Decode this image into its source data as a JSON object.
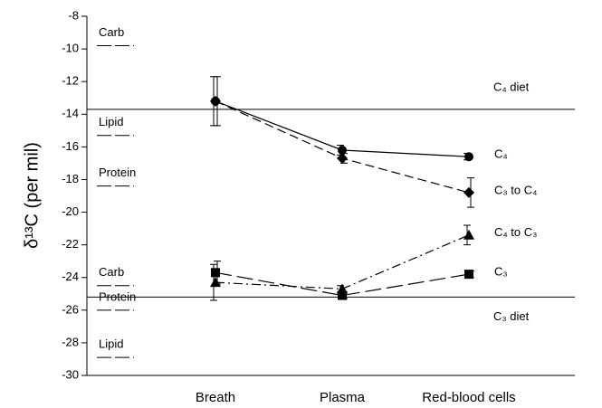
{
  "chart_data": {
    "type": "line",
    "y_label": "δ¹³C (per mil)",
    "categories": [
      "Breath",
      "Plasma",
      "Red-blood cells"
    ],
    "ylim": [
      -30,
      -8
    ],
    "yticks": [
      -30,
      -28,
      -26,
      -24,
      -22,
      -20,
      -18,
      -16,
      -14,
      -12,
      -10,
      -8
    ],
    "color": "#000000",
    "series": [
      {
        "name": "C₄",
        "marker": "circle",
        "line_style": "solid",
        "values": [
          -13.2,
          -16.2,
          -16.6
        ],
        "errors": [
          1.5,
          0.3,
          0.2
        ]
      },
      {
        "name": "C₃ to C₄",
        "marker": "diamond",
        "line_style": "dashed",
        "values": [
          -13.2,
          -16.7,
          -18.8
        ],
        "errors": [
          1.5,
          0.3,
          0.9
        ]
      },
      {
        "name": "C₄ to C₃",
        "marker": "triangle",
        "line_style": "dashdot",
        "values": [
          -24.3,
          -24.7,
          -21.4
        ],
        "errors": [
          1.1,
          0.2,
          0.6
        ]
      },
      {
        "name": "C₃",
        "marker": "square",
        "line_style": "longdash",
        "values": [
          -23.7,
          -25.1,
          -23.8
        ],
        "errors": [
          0.7,
          0.2,
          0.2
        ]
      }
    ],
    "reference_lines": [
      {
        "label": "C₄ diet",
        "value": -13.7
      },
      {
        "label": "C₃ diet",
        "value": -25.2
      }
    ],
    "side_markers": [
      {
        "label": "Carb",
        "value": -9.8
      },
      {
        "label": "Lipid",
        "value": -15.3
      },
      {
        "label": "Protein",
        "value": -18.4
      },
      {
        "label": "Carb",
        "value": -24.5
      },
      {
        "label": "Protein",
        "value": -26
      },
      {
        "label": "Lipid",
        "value": -28.9
      }
    ]
  }
}
